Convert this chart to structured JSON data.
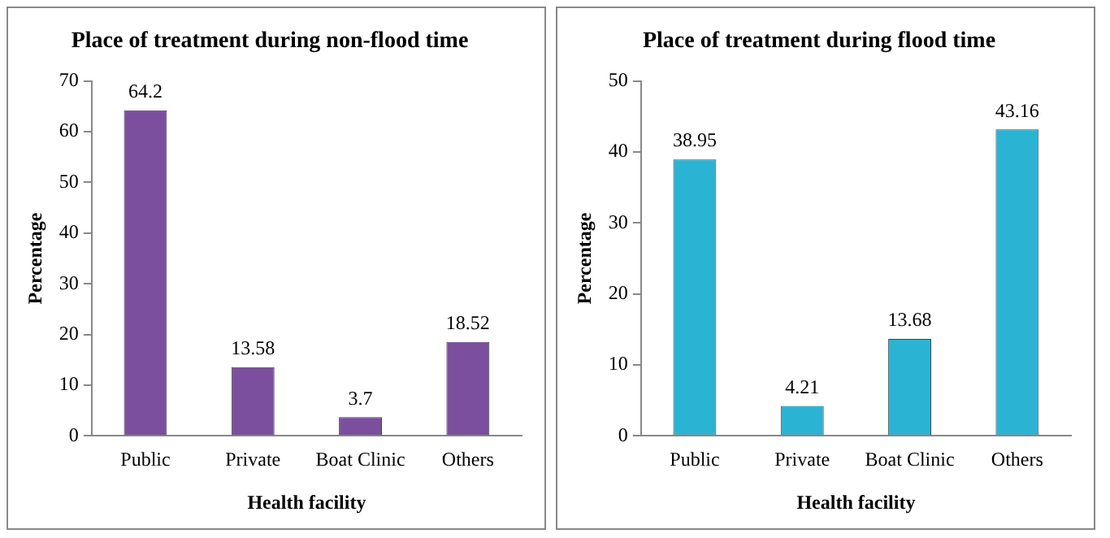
{
  "chart_data": [
    {
      "type": "bar",
      "title": "Place of treatment during non-flood time",
      "xlabel": "Health facility",
      "ylabel": "Percentage",
      "categories": [
        "Public",
        "Private",
        "Boat Clinic",
        "Others"
      ],
      "values": [
        64.2,
        13.58,
        3.7,
        18.52
      ],
      "color": "#7b4f9e",
      "ylim": [
        0,
        70
      ],
      "yticks": [
        0,
        10,
        20,
        30,
        40,
        50,
        60,
        70
      ],
      "grid": false,
      "data_labels": true
    },
    {
      "type": "bar",
      "title": "Place of treatment during flood time",
      "xlabel": "Health facility",
      "ylabel": "Percentage",
      "categories": [
        "Public",
        "Private",
        "Boat Clinic",
        "Others"
      ],
      "values": [
        38.95,
        4.21,
        13.68,
        43.16
      ],
      "color": "#2bb3d4",
      "ylim": [
        0,
        50
      ],
      "yticks": [
        0,
        10,
        20,
        30,
        40,
        50
      ],
      "grid": false,
      "data_labels": true
    }
  ]
}
